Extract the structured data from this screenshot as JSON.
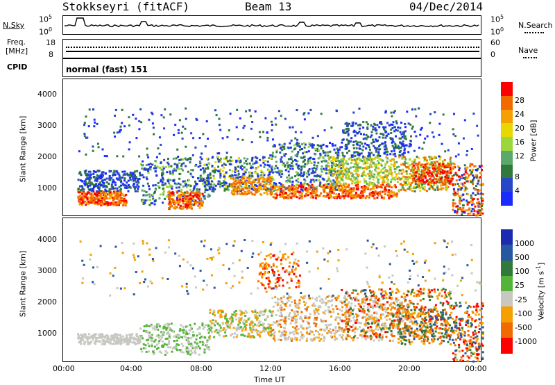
{
  "header": {
    "station": "Stokkseyri (fitACF)",
    "beam": "Beam 13",
    "date": "04/Dec/2014"
  },
  "nsky_panel": {
    "left_label": "N.Sky",
    "left_ticks": [
      "10^5",
      "10^0"
    ],
    "right_ticks": [
      "10^5",
      "10^0"
    ],
    "right_label": "N.Search"
  },
  "freq_panel": {
    "left_label_line1": "Freq.",
    "left_label_line2": "[MHz]",
    "left_ticks": [
      "18",
      "8"
    ],
    "right_ticks": [
      "60",
      "0"
    ],
    "right_label": "Nave"
  },
  "cpid_panel": {
    "label": "CPID",
    "mode": "normal (fast) 151"
  },
  "colors": {
    "power_scale": [
      "#1a2bff",
      "#2746c8",
      "#2f7a3a",
      "#5aa86b",
      "#9bd63a",
      "#e8d800",
      "#f5a000",
      "#f06a00",
      "#ff0000"
    ],
    "velocity_scale": [
      "#1a2bb0",
      "#2757a0",
      "#2f7a3a",
      "#55b33a",
      "#c8c8c0",
      "#f5a000",
      "#f06a00",
      "#ff0000"
    ]
  },
  "chart_data": [
    {
      "type": "heatmap",
      "name": "power",
      "ylabel": "Slant Range [km]",
      "ylim": [
        200,
        4600
      ],
      "yticks": [
        "1000",
        "2000",
        "3000",
        "4000"
      ],
      "xlim": [
        0,
        24
      ],
      "colorbar_label": "Power [dB]",
      "colorbar_ticks": [
        "4",
        "8",
        "12",
        "16",
        "20",
        "24",
        "28"
      ]
    },
    {
      "type": "heatmap",
      "name": "velocity",
      "ylabel": "Slant Range [km]",
      "ylim": [
        200,
        4600
      ],
      "yticks": [
        "1000",
        "2000",
        "3000",
        "4000"
      ],
      "xlim": [
        0,
        24
      ],
      "xlabel": "Time UT",
      "xticks": [
        "00:00",
        "04:00",
        "08:00",
        "12:00",
        "16:00",
        "20:00",
        "00:00"
      ],
      "colorbar_label": "Velocity [m s^-1]",
      "colorbar_ticks": [
        "1000",
        "500",
        "100",
        "25",
        "-25",
        "-100",
        "-500",
        "-1000"
      ]
    }
  ]
}
